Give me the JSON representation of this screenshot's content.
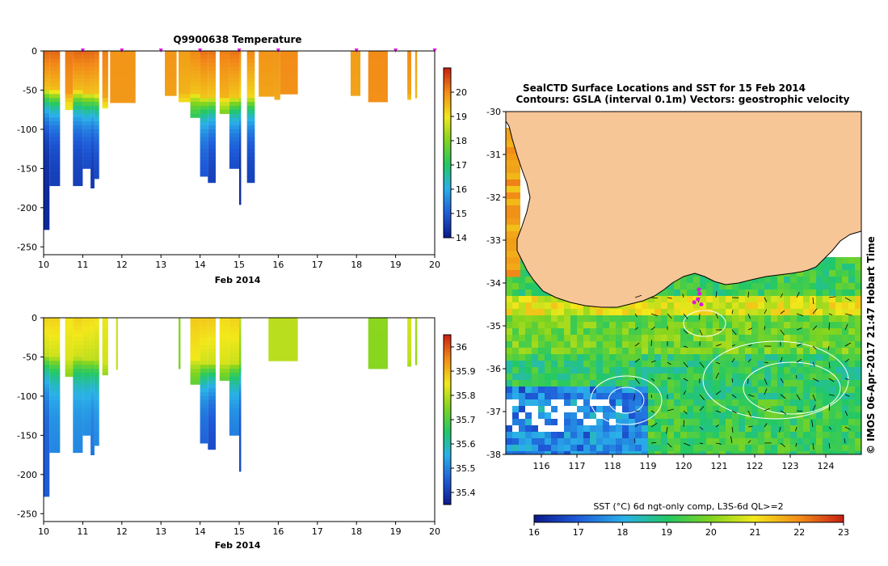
{
  "chart_data": [
    {
      "id": "temperature-profile",
      "type": "heatmap",
      "title": "Q9900638  Temperature",
      "xlabel": "Feb 2014",
      "ylabel": "",
      "xlim": [
        10,
        20
      ],
      "ylim": [
        -260,
        0
      ],
      "x_ticks": [
        "10",
        "11",
        "12",
        "13",
        "14",
        "15",
        "16",
        "17",
        "18",
        "19",
        "20"
      ],
      "y_ticks": [
        "0",
        "-50",
        "-100",
        "-150",
        "-200",
        "-250"
      ],
      "colorbar": {
        "min": 14,
        "max": 21,
        "ticks": [
          "14",
          "15",
          "16",
          "17",
          "18",
          "19",
          "20"
        ]
      },
      "surface_markers_x": [
        11.0,
        12.0,
        13.0,
        14.0,
        15.0,
        16.0,
        18.0,
        19.0,
        20.0
      ],
      "profiles": [
        {
          "x0": 10.0,
          "x1": 10.15,
          "depth": 228,
          "mix": 45,
          "surf": 20.3,
          "deep": 14.2
        },
        {
          "x0": 10.15,
          "x1": 10.42,
          "depth": 172,
          "mix": 47,
          "surf": 20.3,
          "deep": 14.5
        },
        {
          "x0": 10.55,
          "x1": 10.75,
          "depth": 75,
          "mix": 50,
          "surf": 20.2,
          "deep": 18.0
        },
        {
          "x0": 10.75,
          "x1": 11.0,
          "depth": 172,
          "mix": 48,
          "surf": 20.3,
          "deep": 14.5
        },
        {
          "x0": 11.0,
          "x1": 11.2,
          "depth": 150,
          "mix": 50,
          "surf": 20.3,
          "deep": 14.6
        },
        {
          "x0": 11.2,
          "x1": 11.3,
          "depth": 175,
          "mix": 50,
          "surf": 20.3,
          "deep": 14.4
        },
        {
          "x0": 11.3,
          "x1": 11.42,
          "depth": 163,
          "mix": 52,
          "surf": 20.2,
          "deep": 14.6
        },
        {
          "x0": 11.5,
          "x1": 11.65,
          "depth": 73,
          "mix": 55,
          "surf": 20.1,
          "deep": 17.8
        },
        {
          "x0": 11.7,
          "x1": 12.35,
          "depth": 66,
          "mix": 70,
          "surf": 19.9,
          "deep": 19.6
        },
        {
          "x0": 13.1,
          "x1": 13.4,
          "depth": 57,
          "mix": 55,
          "surf": 19.9,
          "deep": 19.0
        },
        {
          "x0": 13.45,
          "x1": 13.75,
          "depth": 65,
          "mix": 50,
          "surf": 19.8,
          "deep": 18.2
        },
        {
          "x0": 13.75,
          "x1": 14.0,
          "depth": 85,
          "mix": 50,
          "surf": 20.0,
          "deep": 16.0
        },
        {
          "x0": 14.0,
          "x1": 14.2,
          "depth": 160,
          "mix": 55,
          "surf": 20.2,
          "deep": 14.8
        },
        {
          "x0": 14.2,
          "x1": 14.4,
          "depth": 168,
          "mix": 55,
          "surf": 20.2,
          "deep": 14.5
        },
        {
          "x0": 14.5,
          "x1": 14.75,
          "depth": 80,
          "mix": 55,
          "surf": 20.1,
          "deep": 16.5
        },
        {
          "x0": 14.75,
          "x1": 15.0,
          "depth": 150,
          "mix": 55,
          "surf": 20.2,
          "deep": 14.6
        },
        {
          "x0": 15.0,
          "x1": 15.05,
          "depth": 196,
          "mix": 55,
          "surf": 20.0,
          "deep": 14.2
        },
        {
          "x0": 15.2,
          "x1": 15.4,
          "depth": 168,
          "mix": 55,
          "surf": 20.0,
          "deep": 14.5
        },
        {
          "x0": 15.5,
          "x1": 15.9,
          "depth": 58,
          "mix": 55,
          "surf": 19.9,
          "deep": 18.8
        },
        {
          "x0": 15.9,
          "x1": 16.05,
          "depth": 62,
          "mix": 58,
          "surf": 19.9,
          "deep": 18.5
        },
        {
          "x0": 16.05,
          "x1": 16.5,
          "depth": 55,
          "mix": 60,
          "surf": 20.0,
          "deep": 19.5
        },
        {
          "x0": 17.85,
          "x1": 18.1,
          "depth": 57,
          "mix": 60,
          "surf": 19.8,
          "deep": 19.4
        },
        {
          "x0": 18.3,
          "x1": 18.8,
          "depth": 65,
          "mix": 70,
          "surf": 20.0,
          "deep": 19.6
        },
        {
          "x0": 19.3,
          "x1": 19.4,
          "depth": 62,
          "mix": 50,
          "surf": 20.0,
          "deep": 18.5
        },
        {
          "x0": 19.5,
          "x1": 19.55,
          "depth": 60,
          "mix": 55,
          "surf": 19.8,
          "deep": 18.0
        }
      ]
    },
    {
      "id": "salinity-profile",
      "type": "heatmap",
      "title": "",
      "xlabel": "Feb 2014",
      "ylabel": "",
      "xlim": [
        10,
        20
      ],
      "ylim": [
        -260,
        0
      ],
      "x_ticks": [
        "10",
        "11",
        "12",
        "13",
        "14",
        "15",
        "16",
        "17",
        "18",
        "19",
        "20"
      ],
      "y_ticks": [
        "0",
        "-50",
        "-100",
        "-150",
        "-200",
        "-250"
      ],
      "colorbar": {
        "min": 35.35,
        "max": 36.05,
        "ticks": [
          "35.4",
          "35.5",
          "35.6",
          "35.7",
          "35.8",
          "35.9",
          "36"
        ]
      },
      "profiles": [
        {
          "x0": 10.0,
          "x1": 10.15,
          "depth": 228,
          "mix": 45,
          "surf": 35.87,
          "deep": 35.45
        },
        {
          "x0": 10.15,
          "x1": 10.42,
          "depth": 172,
          "mix": 47,
          "surf": 35.87,
          "deep": 35.5
        },
        {
          "x0": 10.55,
          "x1": 10.75,
          "depth": 75,
          "mix": 50,
          "surf": 35.85,
          "deep": 35.7
        },
        {
          "x0": 10.75,
          "x1": 11.0,
          "depth": 172,
          "mix": 48,
          "surf": 35.87,
          "deep": 35.5
        },
        {
          "x0": 11.0,
          "x1": 11.2,
          "depth": 150,
          "mix": 50,
          "surf": 35.86,
          "deep": 35.5
        },
        {
          "x0": 11.2,
          "x1": 11.3,
          "depth": 175,
          "mix": 50,
          "surf": 35.86,
          "deep": 35.48
        },
        {
          "x0": 11.3,
          "x1": 11.42,
          "depth": 163,
          "mix": 52,
          "surf": 35.85,
          "deep": 35.5
        },
        {
          "x0": 11.5,
          "x1": 11.65,
          "depth": 73,
          "mix": 55,
          "surf": 35.84,
          "deep": 35.7
        },
        {
          "x0": 11.85,
          "x1": 11.9,
          "depth": 66,
          "mix": 60,
          "surf": 35.82,
          "deep": 35.78
        },
        {
          "x0": 13.45,
          "x1": 13.5,
          "depth": 65,
          "mix": 55,
          "surf": 35.76,
          "deep": 35.7
        },
        {
          "x0": 13.75,
          "x1": 14.0,
          "depth": 85,
          "mix": 50,
          "surf": 35.88,
          "deep": 35.65
        },
        {
          "x0": 14.0,
          "x1": 14.2,
          "depth": 160,
          "mix": 55,
          "surf": 35.88,
          "deep": 35.45
        },
        {
          "x0": 14.2,
          "x1": 14.4,
          "depth": 168,
          "mix": 55,
          "surf": 35.88,
          "deep": 35.42
        },
        {
          "x0": 14.5,
          "x1": 14.75,
          "depth": 80,
          "mix": 55,
          "surf": 35.86,
          "deep": 35.62
        },
        {
          "x0": 14.75,
          "x1": 15.0,
          "depth": 150,
          "mix": 55,
          "surf": 35.87,
          "deep": 35.48
        },
        {
          "x0": 15.0,
          "x1": 15.05,
          "depth": 196,
          "mix": 55,
          "surf": 35.8,
          "deep": 35.42
        },
        {
          "x0": 15.75,
          "x1": 16.5,
          "depth": 55,
          "mix": 60,
          "surf": 35.8,
          "deep": 35.78
        },
        {
          "x0": 18.3,
          "x1": 18.8,
          "depth": 65,
          "mix": 70,
          "surf": 35.76,
          "deep": 35.74
        },
        {
          "x0": 19.3,
          "x1": 19.4,
          "depth": 62,
          "mix": 50,
          "surf": 35.82,
          "deep": 35.72
        },
        {
          "x0": 19.5,
          "x1": 19.55,
          "depth": 60,
          "mix": 55,
          "surf": 35.78,
          "deep": 35.7
        }
      ]
    },
    {
      "id": "sst-map",
      "type": "heatmap",
      "title": "SealCTD Surface Locations and SST for 15 Feb 2014",
      "subtitle": "Contours: GSLA (interval 0.1m) Vectors: geostrophic velocity",
      "xlabel": "",
      "ylabel": "",
      "xlim": [
        115,
        125
      ],
      "ylim": [
        -38,
        -30
      ],
      "x_ticks": [
        "116",
        "117",
        "118",
        "119",
        "120",
        "121",
        "122",
        "123",
        "124"
      ],
      "y_ticks": [
        "-30",
        "-31",
        "-32",
        "-33",
        "-34",
        "-35",
        "-36",
        "-37",
        "-38"
      ],
      "colorbar": {
        "label": "SST (°C) 6d ngt-only comp, L3S-6d QL>=2",
        "min": 16,
        "max": 23,
        "ticks": [
          "16",
          "17",
          "18",
          "19",
          "20",
          "21",
          "22",
          "23"
        ]
      },
      "sst_pattern": [
        {
          "lat_from": -34.3,
          "lat_to": -34.7,
          "sst": 20.8
        },
        {
          "lat_from": -34.7,
          "lat_to": -35.6,
          "sst": 19.8
        },
        {
          "lat_from": -35.6,
          "lat_to": -36.6,
          "sst": 19.1
        },
        {
          "lat_from": -36.6,
          "lat_to": -38.0,
          "sst": 19.3
        }
      ],
      "seal_locations": [
        {
          "lon": 120.43,
          "lat": -34.15
        },
        {
          "lon": 120.45,
          "lat": -34.25
        },
        {
          "lon": 120.4,
          "lat": -34.38
        },
        {
          "lon": 120.3,
          "lat": -34.45
        },
        {
          "lon": 120.5,
          "lat": -34.5
        }
      ]
    }
  ],
  "watermark": "© IMOS 06-Apr-2017 21:47 Hobart Time",
  "colors": {
    "land": "#f7c697",
    "axis": "#000000",
    "marker": "#e014e0",
    "background": "#ffffff",
    "contour": "#ffffff"
  }
}
